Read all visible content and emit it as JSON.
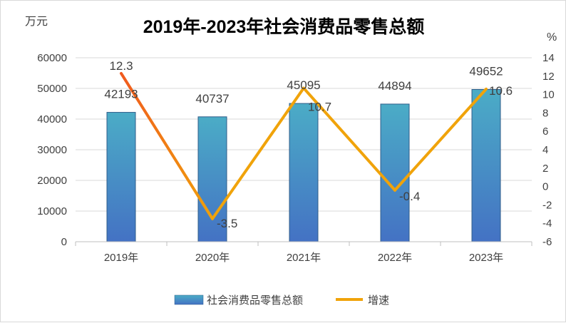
{
  "chart_data": {
    "type": "bar+line",
    "title": "2019年-2023年社会消费品零售总额",
    "ylabel_left": "万元",
    "ylabel_right": "%",
    "categories": [
      "2019年",
      "2020年",
      "2021年",
      "2022年",
      "2023年"
    ],
    "series": [
      {
        "name": "社会消费品零售总额",
        "type": "bar",
        "axis": "left",
        "values": [
          42193,
          40737,
          45095,
          44894,
          49652
        ],
        "labels": [
          "42193",
          "40737",
          "45095",
          "44894",
          "49652"
        ]
      },
      {
        "name": "增速",
        "type": "line",
        "axis": "right",
        "values": [
          12.3,
          -3.5,
          10.7,
          -0.4,
          10.6
        ],
        "labels": [
          "12.3",
          "-3.5",
          "10.7",
          "-0.4",
          "10.6"
        ]
      }
    ],
    "ylim_left": [
      0,
      60000
    ],
    "yticks_left": [
      "0",
      "10000",
      "20000",
      "30000",
      "40000",
      "50000",
      "60000"
    ],
    "ylim_right": [
      -6,
      14
    ],
    "yticks_right": [
      "-6",
      "-4",
      "-2",
      "0",
      "2",
      "4",
      "6",
      "8",
      "10",
      "12",
      "14"
    ],
    "grid": true,
    "legend": "bottom",
    "colors": {
      "bar_top": "#4bacc6",
      "bar_bottom": "#4472c4",
      "line_start": "#f05a1e",
      "line": "#f0a30a"
    }
  }
}
